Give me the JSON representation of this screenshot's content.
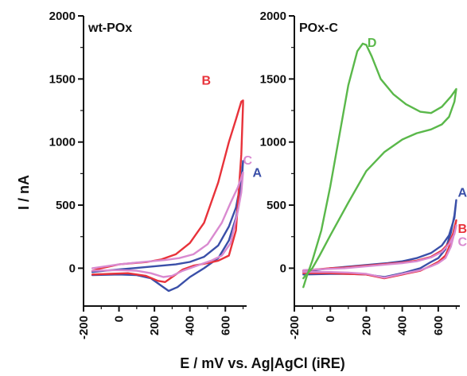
{
  "chart_data": {
    "type": "line",
    "xlabel": "E / mV vs. Ag|AgCl (iRE)",
    "ylabel": "I / nA",
    "colors": {
      "A": "#3a4fa8",
      "B": "#e8323a",
      "C": "#d98ad0",
      "D": "#5ab84a"
    },
    "panels": [
      {
        "title": "wt-POx",
        "xlim": [
          -200,
          720
        ],
        "ylim": [
          -300,
          2000
        ],
        "xticks": [
          "-200",
          "0",
          "200",
          "400",
          "600"
        ],
        "yticks": [
          "0",
          "500",
          "1000",
          "1500",
          "2000"
        ],
        "series": [
          {
            "name": "A",
            "x": [
              -150,
              0,
              100,
              180,
              240,
              280,
              330,
              400,
              480,
              560,
              620,
              660,
              690,
              700,
              690,
              660,
              620,
              560,
              480,
              400,
              320,
              240,
              160,
              80,
              0,
              -80,
              -150
            ],
            "y": [
              -55,
              -50,
              -55,
              -80,
              -140,
              -180,
              -150,
              -70,
              0,
              80,
              220,
              400,
              620,
              850,
              700,
              480,
              330,
              180,
              90,
              50,
              30,
              20,
              10,
              0,
              -10,
              -20,
              -30
            ]
          },
          {
            "name": "B",
            "x": [
              -150,
              -50,
              50,
              150,
              220,
              260,
              300,
              360,
              420,
              500,
              560,
              620,
              660,
              690,
              700,
              700,
              690,
              660,
              620,
              560,
              480,
              400,
              320,
              240,
              160,
              80,
              0,
              -100,
              -150
            ],
            "y": [
              -50,
              -45,
              -40,
              -60,
              -100,
              -110,
              -70,
              -10,
              20,
              40,
              60,
              100,
              300,
              900,
              1300,
              1330,
              1320,
              1180,
              1000,
              680,
              360,
              200,
              110,
              70,
              50,
              40,
              30,
              0,
              -20
            ]
          },
          {
            "name": "C",
            "x": [
              -150,
              0,
              100,
              180,
              250,
              300,
              360,
              440,
              520,
              580,
              630,
              670,
              690,
              700,
              690,
              670,
              630,
              580,
              500,
              420,
              340,
              260,
              180,
              100,
              0,
              -100,
              -150
            ],
            "y": [
              -20,
              -15,
              -20,
              -40,
              -70,
              -60,
              -20,
              20,
              60,
              100,
              200,
              450,
              600,
              760,
              720,
              640,
              520,
              360,
              190,
              110,
              80,
              65,
              55,
              45,
              30,
              10,
              0
            ]
          }
        ]
      },
      {
        "title": "POx-C",
        "xlim": [
          -200,
          720
        ],
        "ylim": [
          -300,
          2000
        ],
        "xticks": [
          "-200",
          "0",
          "200",
          "400",
          "600"
        ],
        "yticks": [
          "0",
          "500",
          "1000",
          "1500",
          "2000"
        ],
        "series": [
          {
            "name": "A",
            "x": [
              -150,
              0,
              100,
              200,
              300,
              400,
              500,
              560,
              600,
              640,
              670,
              690,
              700,
              690,
              660,
              620,
              560,
              480,
              400,
              320,
              240,
              160,
              80,
              0,
              -80,
              -150
            ],
            "y": [
              -50,
              -45,
              -45,
              -50,
              -70,
              -40,
              0,
              50,
              80,
              150,
              280,
              420,
              540,
              400,
              260,
              180,
              120,
              80,
              55,
              40,
              30,
              20,
              10,
              0,
              -15,
              -30
            ]
          },
          {
            "name": "B",
            "x": [
              -150,
              0,
              100,
              200,
              300,
              400,
              500,
              560,
              600,
              640,
              670,
              690,
              700,
              690,
              660,
              620,
              560,
              480,
              400,
              320,
              240,
              160,
              80,
              0,
              -80,
              -150
            ],
            "y": [
              -40,
              -40,
              -45,
              -50,
              -80,
              -50,
              -20,
              20,
              50,
              100,
              200,
              320,
              380,
              300,
              200,
              140,
              90,
              60,
              45,
              35,
              25,
              15,
              5,
              0,
              -10,
              -20
            ]
          },
          {
            "name": "C",
            "x": [
              -150,
              0,
              100,
              200,
              300,
              400,
              500,
              560,
              600,
              640,
              670,
              690,
              700,
              690,
              660,
              620,
              560,
              480,
              400,
              320,
              240,
              160,
              80,
              0,
              -80,
              -150
            ],
            "y": [
              -30,
              -30,
              -35,
              -45,
              -75,
              -45,
              -15,
              15,
              40,
              80,
              170,
              280,
              340,
              270,
              190,
              130,
              85,
              55,
              40,
              30,
              20,
              10,
              0,
              -5,
              -10,
              -15
            ]
          },
          {
            "name": "D",
            "x": [
              -150,
              -130,
              -100,
              -50,
              0,
              50,
              100,
              150,
              180,
              200,
              230,
              280,
              350,
              420,
              500,
              560,
              620,
              670,
              700,
              690,
              660,
              620,
              560,
              480,
              400,
              300,
              200,
              100,
              0,
              -60,
              -100,
              -140,
              -150
            ],
            "y": [
              -150,
              -60,
              60,
              300,
              650,
              1050,
              1450,
              1720,
              1780,
              1770,
              1680,
              1500,
              1380,
              1300,
              1240,
              1230,
              1280,
              1360,
              1420,
              1320,
              1200,
              1140,
              1100,
              1070,
              1020,
              920,
              770,
              520,
              260,
              100,
              0,
              -60,
              -80
            ]
          }
        ]
      }
    ]
  }
}
